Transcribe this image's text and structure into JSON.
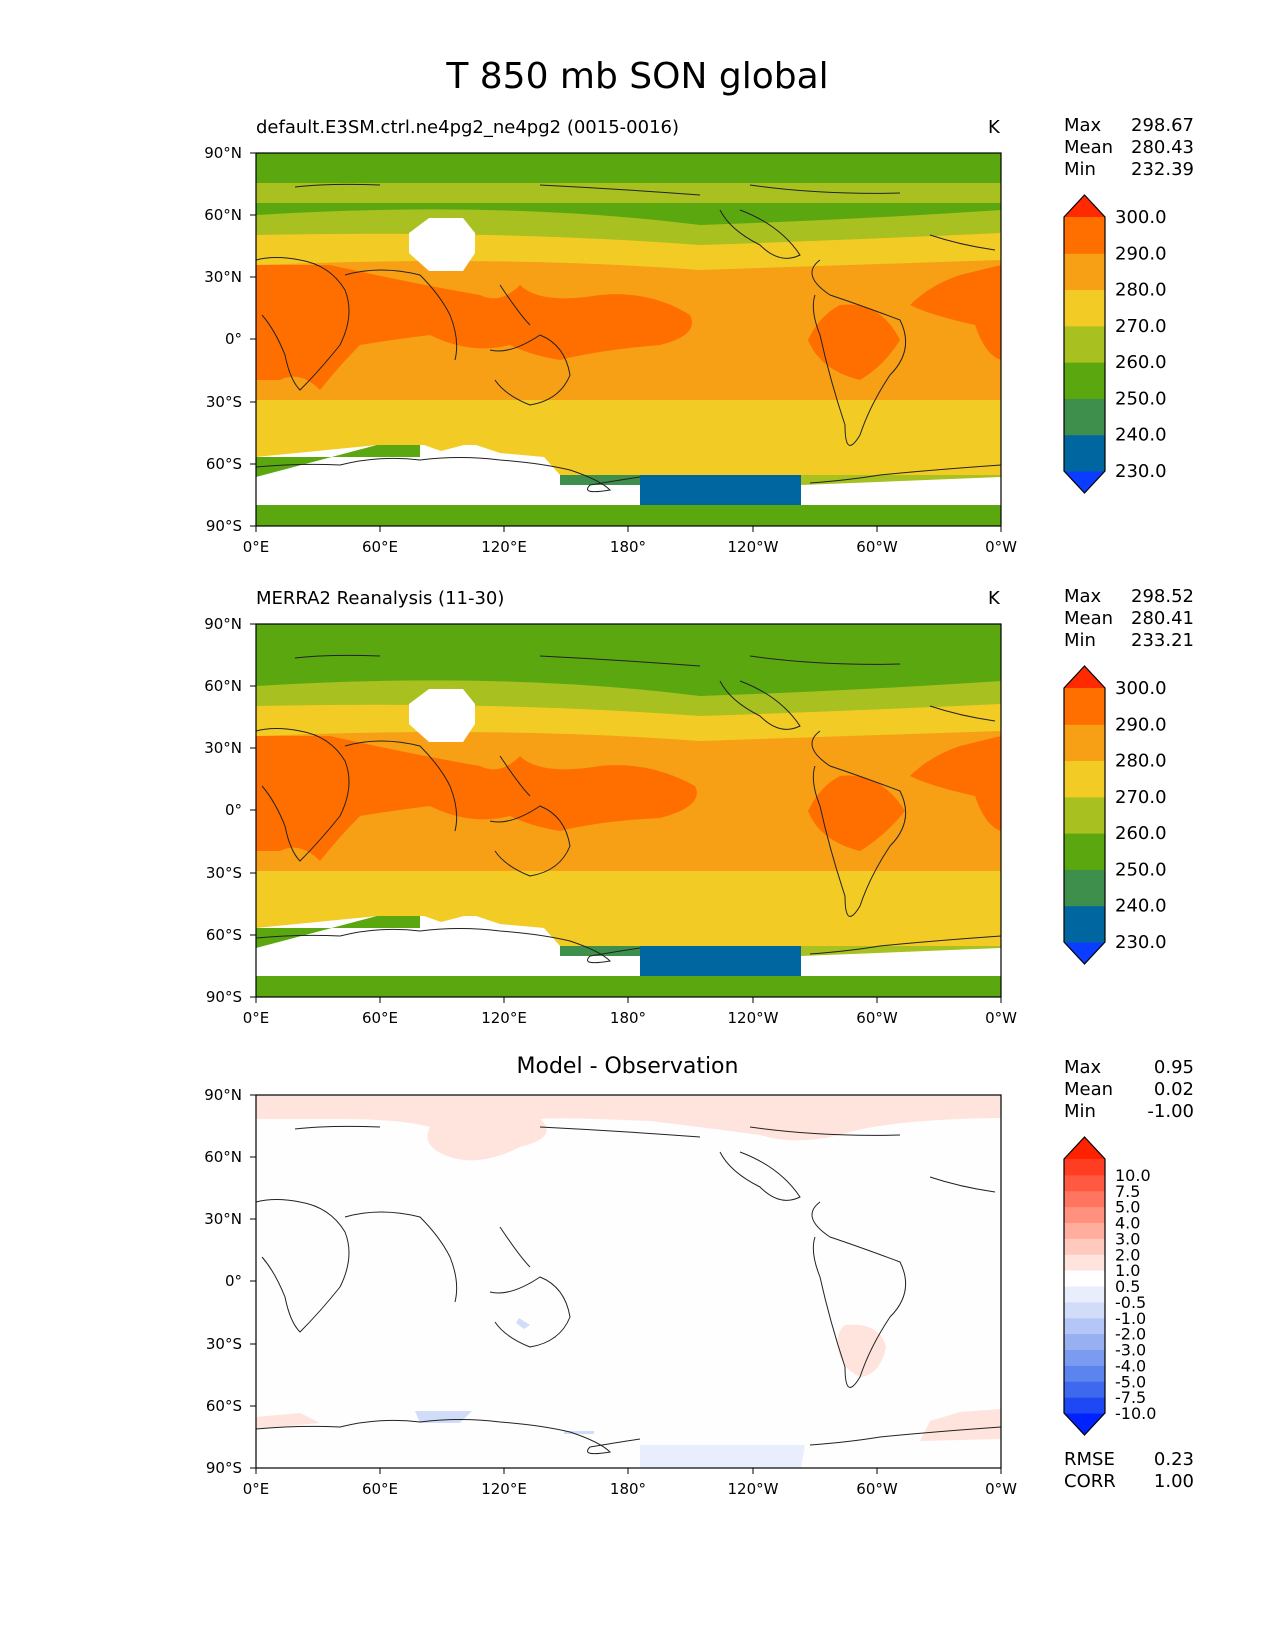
{
  "figure": {
    "title": "T 850 mb SON global"
  },
  "axes": {
    "x_ticks": [
      "0°E",
      "60°E",
      "120°E",
      "180°",
      "120°W",
      "60°W",
      "0°W"
    ],
    "y_ticks": [
      "90°N",
      "60°N",
      "30°N",
      "0°",
      "30°S",
      "60°S",
      "90°S"
    ]
  },
  "panels": [
    {
      "title": "default.E3SM.ctrl.ne4pg2_ne4pg2 (0015-0016)",
      "units": "K",
      "stats": [
        {
          "label": "Max",
          "value": "298.67"
        },
        {
          "label": "Mean",
          "value": "280.43"
        },
        {
          "label": "Min",
          "value": "232.39"
        }
      ],
      "colorbar": {
        "colors": [
          "#0a3dff",
          "#0066a0",
          "#3f8f4c",
          "#5aa710",
          "#a8c020",
          "#f2cc25",
          "#f7a016",
          "#ff6f00",
          "#ff2a00"
        ],
        "labels": [
          "230.0",
          "240.0",
          "250.0",
          "260.0",
          "270.0",
          "280.0",
          "290.0",
          "300.0"
        ]
      }
    },
    {
      "title": "MERRA2 Reanalysis (11-30)",
      "units": "K",
      "stats": [
        {
          "label": "Max",
          "value": "298.52"
        },
        {
          "label": "Mean",
          "value": "280.41"
        },
        {
          "label": "Min",
          "value": "233.21"
        }
      ],
      "colorbar": {
        "colors": [
          "#0a3dff",
          "#0066a0",
          "#3f8f4c",
          "#5aa710",
          "#a8c020",
          "#f2cc25",
          "#f7a016",
          "#ff6f00",
          "#ff2a00"
        ],
        "labels": [
          "230.0",
          "240.0",
          "250.0",
          "260.0",
          "270.0",
          "280.0",
          "290.0",
          "300.0"
        ]
      }
    },
    {
      "title": "Model - Observation",
      "units": "",
      "stats": [
        {
          "label": "Max",
          "value": "0.95"
        },
        {
          "label": "Mean",
          "value": "0.02"
        },
        {
          "label": "Min",
          "value": "-1.00"
        }
      ],
      "extra_stats": [
        {
          "label": "RMSE",
          "value": "0.23"
        },
        {
          "label": "CORR",
          "value": "1.00"
        }
      ],
      "colorbar": {
        "colors": [
          "#0022ff",
          "#1f48f5",
          "#3e68ee",
          "#5b84ef",
          "#7a9bf0",
          "#97b0f2",
          "#b4c6f5",
          "#d0dcf8",
          "#e8eefb",
          "#ffffff",
          "#ffe3dd",
          "#ffc9bd",
          "#ffad9d",
          "#ff917e",
          "#ff755f",
          "#ff5a41",
          "#ff3d22",
          "#ff2200"
        ],
        "labels": [
          "-10.0",
          "-7.5",
          "-5.0",
          "-4.0",
          "-3.0",
          "-2.0",
          "-1.0",
          "-0.5",
          "0.5",
          "1.0",
          "2.0",
          "3.0",
          "4.0",
          "5.0",
          "7.5",
          "10.0"
        ]
      }
    }
  ],
  "chart_data": [
    {
      "type": "heatmap",
      "title": "default.E3SM.ctrl.ne4pg2_ne4pg2 (0015-0016)",
      "units": "K",
      "xlim": [
        0,
        360
      ],
      "ylim": [
        -90,
        90
      ],
      "levels": [
        230,
        240,
        250,
        260,
        270,
        280,
        290,
        300
      ],
      "max": 298.67,
      "mean": 280.43,
      "min": 232.39
    },
    {
      "type": "heatmap",
      "title": "MERRA2 Reanalysis (11-30)",
      "units": "K",
      "xlim": [
        0,
        360
      ],
      "ylim": [
        -90,
        90
      ],
      "levels": [
        230,
        240,
        250,
        260,
        270,
        280,
        290,
        300
      ],
      "max": 298.52,
      "mean": 280.41,
      "min": 233.21
    },
    {
      "type": "heatmap",
      "title": "Model - Observation",
      "xlim": [
        0,
        360
      ],
      "ylim": [
        -90,
        90
      ],
      "levels": [
        -10,
        -7.5,
        -5,
        -4,
        -3,
        -2,
        -1,
        -0.5,
        0.5,
        1,
        2,
        3,
        4,
        5,
        7.5,
        10
      ],
      "max": 0.95,
      "mean": 0.02,
      "min": -1.0,
      "rmse": 0.23,
      "corr": 1.0
    }
  ]
}
